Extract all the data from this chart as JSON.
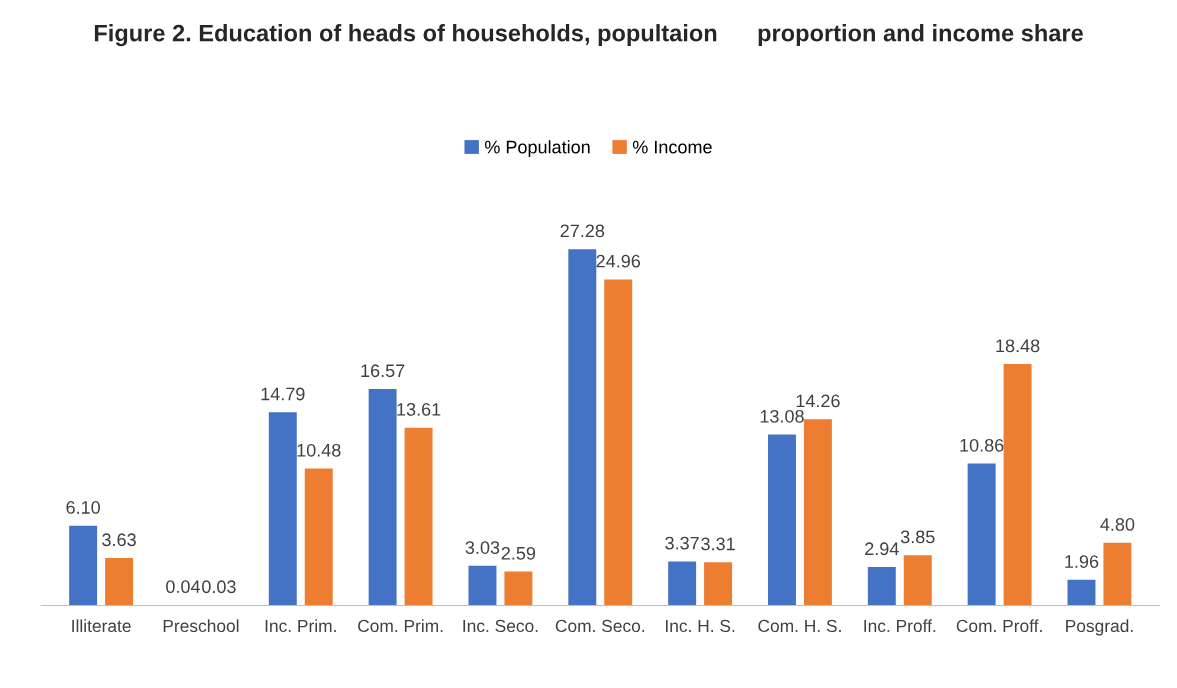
{
  "chart_data": {
    "type": "bar",
    "title": "Figure 2. Education of heads of households, popultaion      proportion and income share",
    "categories": [
      "Illiterate",
      "Preschool",
      "Inc. Prim.",
      "Com. Prim.",
      "Inc. Seco.",
      "Com. Seco.",
      "Inc. H. S.",
      "Com. H. S.",
      "Inc. Proff.",
      "Com. Proff.",
      "Posgrad."
    ],
    "series": [
      {
        "name": "% Population",
        "color": "#4472c4",
        "values": [
          6.1,
          0.04,
          14.79,
          16.57,
          3.03,
          27.28,
          3.37,
          13.08,
          2.94,
          10.86,
          1.96
        ],
        "value_labels": [
          "6.10",
          "0.04",
          "14.79",
          "16.57",
          "3.03",
          "27.28",
          "3.37",
          "13.08",
          "2.94",
          "10.86",
          "1.96"
        ]
      },
      {
        "name": "% Income",
        "color": "#ed7d31",
        "values": [
          3.63,
          0.03,
          10.48,
          13.61,
          2.59,
          24.96,
          3.31,
          14.26,
          3.85,
          18.48,
          4.8
        ],
        "value_labels": [
          "3.63",
          "0.03",
          "10.48",
          "13.61",
          "2.59",
          "24.96",
          "3.31",
          "14.26",
          "3.85",
          "18.48",
          "4.80"
        ]
      }
    ],
    "legend": "top",
    "grid": false
  }
}
